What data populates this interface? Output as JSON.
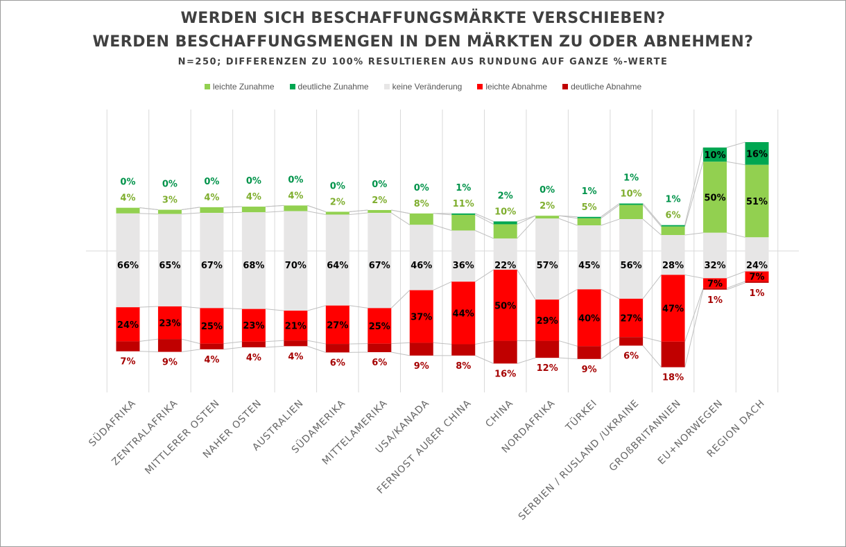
{
  "title_line1": "WERDEN SICH BESCHAFFUNGSMÄRKTE VERSCHIEBEN?",
  "title_line2": "WERDEN BESCHAFFUNGSMENGEN IN DEN MÄRKTEN ZU ODER ABNEHMEN?",
  "subtitle": "N=250; DIFFERENZEN ZU 100% RESULTIEREN AUS RUNDUNG AUF GANZE %-WERTE",
  "colors": {
    "leichte_zunahme": "#92d050",
    "deutliche_zunahme": "#00a651",
    "keine_veraenderung": "#e7e6e6",
    "leichte_abnahme": "#ff0000",
    "deutliche_abnahme": "#c00000",
    "label_light_green": "#7fae2f",
    "label_dark_green": "#00934a",
    "label_dark_red": "#a50000"
  },
  "legend": [
    {
      "label": "leichte Zunahme",
      "color": "#92d050"
    },
    {
      "label": "deutliche Zunahme",
      "color": "#00a651"
    },
    {
      "label": "keine Veränderung",
      "color": "#e7e6e6"
    },
    {
      "label": "leichte Abnahme",
      "color": "#ff0000"
    },
    {
      "label": "deutliche Abnahme",
      "color": "#c00000"
    }
  ],
  "chart_data": {
    "type": "bar",
    "stacked": true,
    "categories": [
      "SÜDAFRIKA",
      "ZENTRALAFRIKA",
      "MITTLERER OSTEN",
      "NAHER OSTEN",
      "AUSTRALIEN",
      "SÜDAMERIKA",
      "MITTELAMERIKA",
      "USA/KANADA",
      "FERNOST AUßER CHINA",
      "CHINA",
      "NORDAFRIKA",
      "TÜRKEI",
      "SERBIEN / RUSLAND /UKRAINE",
      "GROßBRITANNIEN",
      "EU+NORWEGEN",
      "REGION DACH"
    ],
    "series": [
      {
        "name": "leichte Zunahme",
        "values": [
          4,
          3,
          4,
          4,
          4,
          2,
          2,
          8,
          11,
          10,
          2,
          5,
          10,
          6,
          50,
          51
        ]
      },
      {
        "name": "deutliche Zunahme",
        "values": [
          0,
          0,
          0,
          0,
          0,
          0,
          0,
          0,
          1,
          2,
          0,
          1,
          1,
          1,
          10,
          16
        ]
      },
      {
        "name": "keine Veränderung",
        "values": [
          66,
          65,
          67,
          68,
          70,
          64,
          67,
          46,
          36,
          22,
          57,
          45,
          56,
          28,
          32,
          24
        ]
      },
      {
        "name": "leichte Abnahme",
        "values": [
          24,
          23,
          25,
          23,
          21,
          27,
          25,
          37,
          44,
          50,
          29,
          40,
          27,
          47,
          7,
          7
        ]
      },
      {
        "name": "deutliche Abnahme",
        "values": [
          7,
          9,
          4,
          4,
          4,
          6,
          6,
          9,
          8,
          16,
          12,
          9,
          6,
          18,
          1,
          1
        ]
      }
    ],
    "legend_position": "top",
    "grid": true
  }
}
